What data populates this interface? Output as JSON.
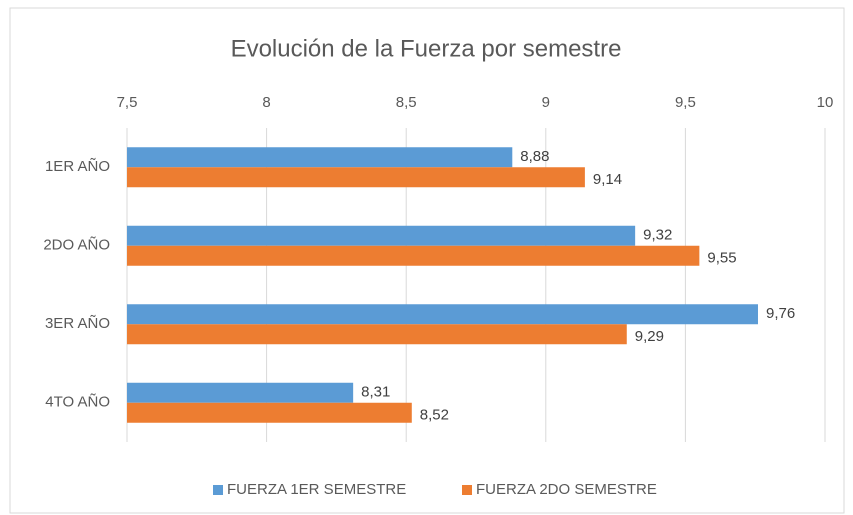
{
  "chart_data": {
    "type": "barh",
    "title": "Evolución de la Fuerza por semestre",
    "categories": [
      "1ER AÑO",
      "2DO AÑO",
      "3ER AÑO",
      "4TO AÑO"
    ],
    "series": [
      {
        "name": "FUERZA 1ER SEMESTRE",
        "color": "#5b9bd5",
        "values": [
          8.88,
          9.32,
          9.76,
          8.31
        ],
        "value_labels": [
          "8,88",
          "9,32",
          "9,76",
          "8,31"
        ]
      },
      {
        "name": "FUERZA 2DO SEMESTRE",
        "color": "#ed7d31",
        "values": [
          9.14,
          9.55,
          9.29,
          8.52
        ],
        "value_labels": [
          "9,14",
          "9,55",
          "9,29",
          "8,52"
        ]
      }
    ],
    "xlim": [
      7.5,
      10
    ],
    "xticks": [
      {
        "value": 7.5,
        "label": "7,5"
      },
      8,
      {
        "value": 8.5,
        "label": "8,5"
      },
      9,
      {
        "value": 9.5,
        "label": "9,5"
      },
      10
    ],
    "grid": true,
    "legend": "bottom"
  }
}
